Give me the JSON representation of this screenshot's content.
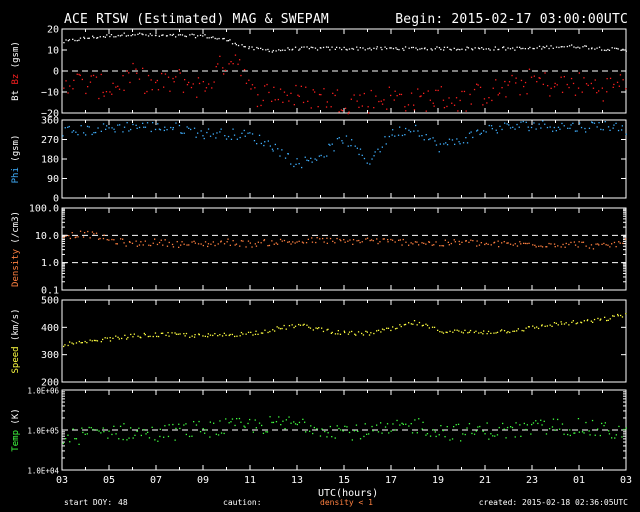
{
  "header": {
    "title": "ACE RTSW (Estimated) MAG & SWEPAM",
    "begin": "Begin: 2015-02-17 03:00:00UTC"
  },
  "footer": {
    "start_doy_label": "start DOY:",
    "start_doy_value": "48",
    "caution_label": "caution:",
    "caution_note": "density < 1",
    "created": "created: 2015-02-18 02:36:05UTC"
  },
  "colors": {
    "bt": "#ffffff",
    "bz": "#ff2020",
    "phi": "#40b0ff",
    "density": "#ff8040",
    "speed": "#ffff40",
    "temp": "#40ff40",
    "axis": "#ffffff",
    "background": "#000000"
  },
  "chart_data": {
    "type": "scatter",
    "xlabel": "UTC(hours)",
    "x_tick_labels": [
      "03",
      "05",
      "07",
      "09",
      "11",
      "13",
      "15",
      "17",
      "19",
      "21",
      "23",
      "01",
      "03"
    ],
    "x_range_hours": [
      0,
      24
    ],
    "panels": [
      {
        "id": "mag",
        "ylabel_parts": [
          {
            "text": "Bt",
            "color": "#ffffff"
          },
          {
            "text": " ",
            "color": "#ffffff"
          },
          {
            "text": "Bz",
            "color": "#ff2020"
          },
          {
            "text": " (gsm)",
            "color": "#ffffff"
          }
        ],
        "scale": "linear",
        "ylim": [
          -20,
          20
        ],
        "ytick_values": [
          -20,
          -10,
          0,
          10,
          20
        ],
        "ytick_labels": [
          "−20",
          "−10",
          "0",
          "10",
          "20"
        ],
        "ref_lines": [
          0
        ],
        "series": [
          {
            "name": "Bt",
            "color": "#ffffff",
            "points": [
              [
                0,
                14
              ],
              [
                1,
                16
              ],
              [
                2,
                17
              ],
              [
                3,
                18
              ],
              [
                4,
                17
              ],
              [
                5,
                17
              ],
              [
                6,
                17
              ],
              [
                7,
                15
              ],
              [
                8,
                11
              ],
              [
                9,
                10
              ],
              [
                10,
                11
              ],
              [
                11,
                11
              ],
              [
                12,
                11
              ],
              [
                13,
                11
              ],
              [
                14,
                11
              ],
              [
                15,
                11
              ],
              [
                16,
                11
              ],
              [
                17,
                11
              ],
              [
                18,
                11
              ],
              [
                19,
                11
              ],
              [
                20,
                11
              ],
              [
                21,
                12
              ],
              [
                22,
                12
              ],
              [
                23,
                11
              ],
              [
                24,
                10
              ]
            ],
            "scatter": 0.8
          },
          {
            "name": "Bz",
            "color": "#ff2020",
            "points": [
              [
                0,
                -4
              ],
              [
                1,
                -6
              ],
              [
                2,
                -8
              ],
              [
                3,
                -2
              ],
              [
                4,
                -7
              ],
              [
                5,
                -4
              ],
              [
                6,
                -8
              ],
              [
                7,
                6
              ],
              [
                7.5,
                7
              ],
              [
                8,
                -11
              ],
              [
                9,
                -10
              ],
              [
                10,
                -12
              ],
              [
                11,
                -12
              ],
              [
                12,
                -14
              ],
              [
                13,
                -14
              ],
              [
                14,
                -12
              ],
              [
                15,
                -14
              ],
              [
                16,
                -12
              ],
              [
                17,
                -14
              ],
              [
                18,
                -10
              ],
              [
                19,
                -8
              ],
              [
                20,
                -4
              ],
              [
                21,
                -7
              ],
              [
                22,
                -6
              ],
              [
                23,
                -8
              ],
              [
                24,
                -5
              ]
            ],
            "scatter": 6
          }
        ]
      },
      {
        "id": "phi",
        "ylabel_parts": [
          {
            "text": "Phi",
            "color": "#40b0ff"
          },
          {
            "text": " (gsm)",
            "color": "#ffffff"
          }
        ],
        "scale": "linear",
        "ylim": [
          0,
          360
        ],
        "ytick_values": [
          0,
          90,
          180,
          270,
          360
        ],
        "ytick_labels": [
          "0",
          "90",
          "180",
          "270",
          "360"
        ],
        "ref_lines": [],
        "series": [
          {
            "name": "Phi",
            "color": "#40b0ff",
            "points": [
              [
                0,
                310
              ],
              [
                1,
                315
              ],
              [
                2,
                325
              ],
              [
                3,
                335
              ],
              [
                4,
                330
              ],
              [
                5,
                325
              ],
              [
                6,
                300
              ],
              [
                7,
                300
              ],
              [
                8,
                290
              ],
              [
                9,
                240
              ],
              [
                10,
                160
              ],
              [
                11,
                200
              ],
              [
                12,
                280
              ],
              [
                13,
                170
              ],
              [
                14,
                300
              ],
              [
                15,
                330
              ],
              [
                16,
                240
              ],
              [
                17,
                270
              ],
              [
                18,
                320
              ],
              [
                19,
                330
              ],
              [
                20,
                340
              ],
              [
                21,
                335
              ],
              [
                22,
                330
              ],
              [
                23,
                340
              ],
              [
                24,
                320
              ]
            ],
            "scatter": 25
          }
        ]
      },
      {
        "id": "density",
        "ylabel_parts": [
          {
            "text": "Density",
            "color": "#ff8040"
          },
          {
            "text": " (/cm3)",
            "color": "#ffffff"
          }
        ],
        "scale": "log",
        "ylim": [
          0.1,
          100
        ],
        "ytick_values": [
          0.1,
          1,
          10,
          100
        ],
        "ytick_labels": [
          "0.1",
          "1.0",
          "10.0",
          "100.0"
        ],
        "ref_lines": [
          1,
          10
        ],
        "series": [
          {
            "name": "Density",
            "color": "#ff8040",
            "points": [
              [
                0,
                10
              ],
              [
                1,
                12
              ],
              [
                2,
                7
              ],
              [
                3,
                5
              ],
              [
                4,
                6
              ],
              [
                5,
                5
              ],
              [
                6,
                5
              ],
              [
                7,
                6
              ],
              [
                8,
                5
              ],
              [
                9,
                6
              ],
              [
                10,
                6
              ],
              [
                11,
                7
              ],
              [
                12,
                6
              ],
              [
                13,
                7
              ],
              [
                14,
                6
              ],
              [
                15,
                6
              ],
              [
                16,
                5
              ],
              [
                17,
                6
              ],
              [
                18,
                5
              ],
              [
                19,
                5
              ],
              [
                20,
                5
              ],
              [
                21,
                5
              ],
              [
                22,
                5
              ],
              [
                23,
                4
              ],
              [
                24,
                6
              ]
            ],
            "scatter": 0.12
          }
        ]
      },
      {
        "id": "speed",
        "ylabel_parts": [
          {
            "text": "Speed",
            "color": "#ffff40"
          },
          {
            "text": " (km/s)",
            "color": "#ffffff"
          }
        ],
        "scale": "linear",
        "ylim": [
          200,
          500
        ],
        "ytick_values": [
          200,
          300,
          400,
          500
        ],
        "ytick_labels": [
          "200",
          "300",
          "400",
          "500"
        ],
        "ref_lines": [],
        "series": [
          {
            "name": "Speed",
            "color": "#ffff40",
            "points": [
              [
                0,
                340
              ],
              [
                1,
                345
              ],
              [
                2,
                360
              ],
              [
                3,
                370
              ],
              [
                4,
                375
              ],
              [
                5,
                375
              ],
              [
                6,
                370
              ],
              [
                7,
                375
              ],
              [
                8,
                380
              ],
              [
                9,
                395
              ],
              [
                10,
                410
              ],
              [
                11,
                395
              ],
              [
                12,
                380
              ],
              [
                13,
                380
              ],
              [
                14,
                395
              ],
              [
                15,
                420
              ],
              [
                16,
                390
              ],
              [
                17,
                385
              ],
              [
                18,
                385
              ],
              [
                19,
                390
              ],
              [
                20,
                400
              ],
              [
                21,
                415
              ],
              [
                22,
                420
              ],
              [
                23,
                430
              ],
              [
                24,
                450
              ]
            ],
            "scatter": 8
          }
        ]
      },
      {
        "id": "temp",
        "ylabel_parts": [
          {
            "text": "Temp",
            "color": "#40ff40"
          },
          {
            "text": " (K)",
            "color": "#ffffff"
          }
        ],
        "scale": "log",
        "ylim": [
          10000,
          1000000
        ],
        "ytick_values": [
          10000,
          100000,
          1000000
        ],
        "ytick_labels": [
          "1.0E+04",
          "1.0E+05",
          "1.0E+06"
        ],
        "ref_lines": [
          100000
        ],
        "series": [
          {
            "name": "Temp",
            "color": "#40ff40",
            "points": [
              [
                0,
                60000
              ],
              [
                1,
                80000
              ],
              [
                2,
                100000
              ],
              [
                3,
                90000
              ],
              [
                4,
                80000
              ],
              [
                5,
                100000
              ],
              [
                6,
                110000
              ],
              [
                7,
                120000
              ],
              [
                8,
                130000
              ],
              [
                9,
                140000
              ],
              [
                10,
                150000
              ],
              [
                11,
                120000
              ],
              [
                12,
                100000
              ],
              [
                13,
                90000
              ],
              [
                14,
                100000
              ],
              [
                15,
                140000
              ],
              [
                16,
                100000
              ],
              [
                17,
                90000
              ],
              [
                18,
                100000
              ],
              [
                19,
                100000
              ],
              [
                20,
                110000
              ],
              [
                21,
                130000
              ],
              [
                22,
                120000
              ],
              [
                23,
                100000
              ],
              [
                24,
                90000
              ]
            ],
            "scatter": 0.22
          }
        ]
      }
    ]
  }
}
